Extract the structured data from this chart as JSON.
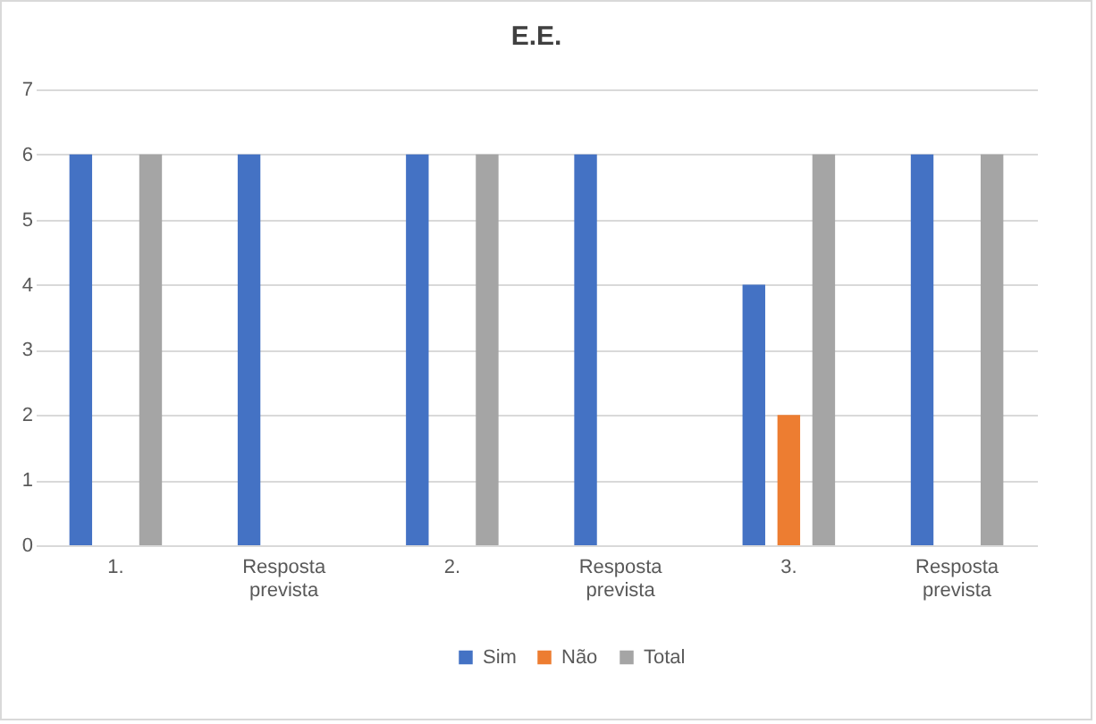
{
  "chart_data": {
    "type": "bar",
    "title": "E.E.",
    "categories": [
      "1.",
      "Resposta prevista",
      "2.",
      "Resposta prevista",
      "3.",
      "Resposta prevista"
    ],
    "series": [
      {
        "name": "Sim",
        "color": "#4472c4",
        "values": [
          6,
          6,
          6,
          6,
          4,
          6
        ]
      },
      {
        "name": "Não",
        "color": "#ed7d31",
        "values": [
          null,
          null,
          null,
          null,
          2,
          null
        ]
      },
      {
        "name": "Total",
        "color": "#a5a5a5",
        "values": [
          6,
          null,
          6,
          null,
          6,
          6
        ]
      }
    ],
    "ylim": [
      0,
      7
    ],
    "yticks": [
      0,
      1,
      2,
      3,
      4,
      5,
      6,
      7
    ],
    "grid": "y",
    "legend": "bottom"
  }
}
